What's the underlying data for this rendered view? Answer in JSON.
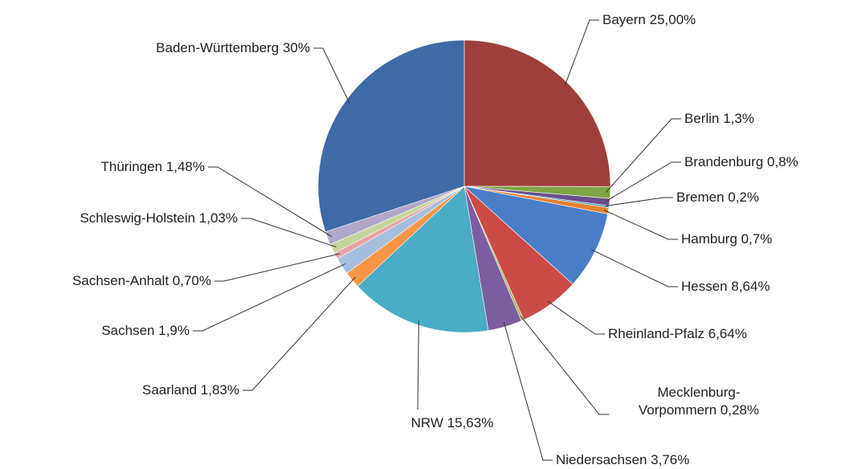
{
  "chart_data": {
    "type": "pie",
    "categories": [
      "Bayern",
      "Berlin",
      "Brandenburg",
      "Bremen",
      "Hamburg",
      "Hessen",
      "Rheinland-Pfalz",
      "Mecklenburg-Vorpommern",
      "Niedersachsen",
      "NRW",
      "Saarland",
      "Sachsen",
      "Sachsen-Anhalt",
      "Schleswig-Holstein",
      "Thüringen",
      "Baden-Württemberg"
    ],
    "values": [
      25,
      1.3,
      0.8,
      0.2,
      0.7,
      8.64,
      6.64,
      0.28,
      3.76,
      15.63,
      1.83,
      1.9,
      0.7,
      1.03,
      1.48,
      30
    ],
    "value_labels": [
      "25,00%",
      "1,3%",
      "0,8%",
      "0,2%",
      "0,7%",
      "8,64%",
      "6,64%",
      "0,28%",
      "3,76%",
      "15,63%",
      "1,83%",
      "1,9%",
      "0,70%",
      "1,03%",
      "1,48%",
      "30%"
    ],
    "colors": [
      "#9e3f3c",
      "#7fa544",
      "#6a4f8f",
      "#3d98b0",
      "#e5822f",
      "#4a7fc8",
      "#cd4b47",
      "#9bbb59",
      "#7d5ea1",
      "#4bacc6",
      "#f79646",
      "#a7bfde",
      "#e6a6a5",
      "#c3d69b",
      "#b3a7c9",
      "#3e6aa6"
    ]
  }
}
